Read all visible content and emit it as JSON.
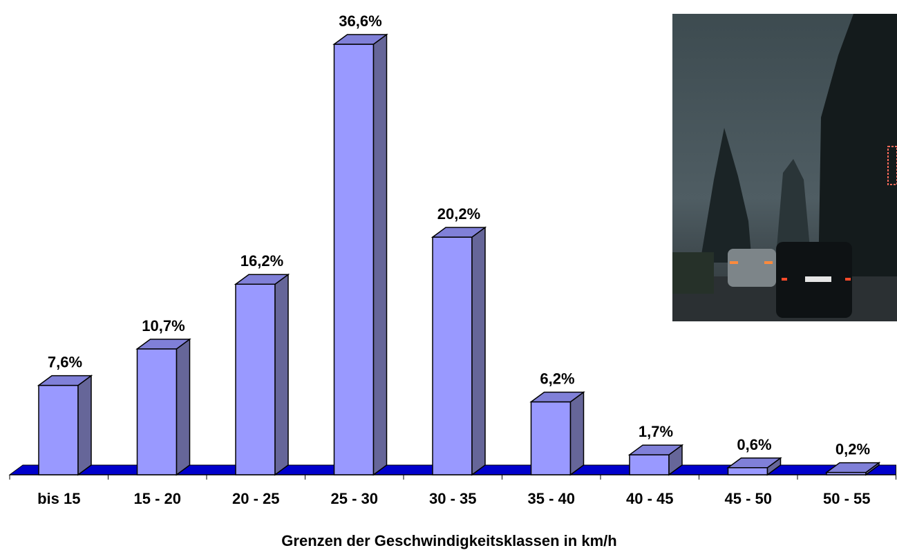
{
  "chart_data": {
    "type": "bar",
    "style": "3d-columns",
    "categories": [
      "bis 15",
      "15 - 20",
      "20 - 25",
      "25 - 30",
      "30 - 35",
      "35 - 40",
      "40 - 45",
      "45 - 50",
      "50 - 55"
    ],
    "values": [
      7.6,
      10.7,
      16.2,
      36.6,
      20.2,
      6.2,
      1.7,
      0.6,
      0.2
    ],
    "data_labels": [
      "7,6%",
      "10,7%",
      "16,2%",
      "36,6%",
      "20,2%",
      "6,2%",
      "1,7%",
      "0,6%",
      "0,2%"
    ],
    "xlabel": "Grenzen der Geschwindigkeitsklassen in km/h",
    "ylim": [
      0,
      36.6
    ],
    "grid": false,
    "legend": "none",
    "colors": {
      "bar_front": "#9999ff",
      "bar_side": "#666699",
      "bar_top": "#8080d8",
      "floor": "#0000cc",
      "outline": "#000000"
    }
  },
  "inset_photo": {
    "subject": "street-at-dusk-with-cars"
  }
}
